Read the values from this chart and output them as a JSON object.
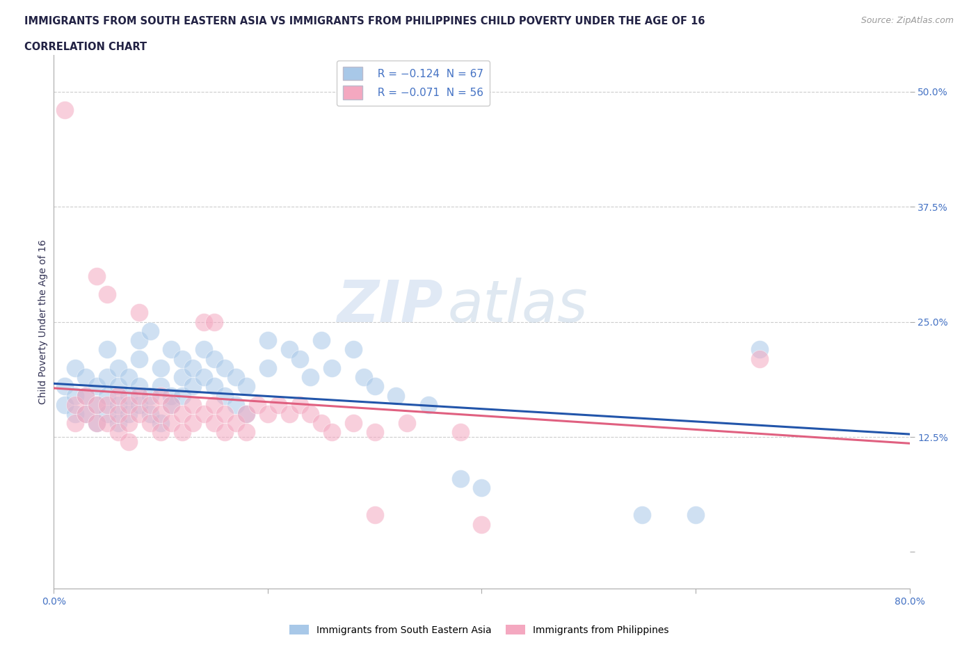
{
  "title_line1": "IMMIGRANTS FROM SOUTH EASTERN ASIA VS IMMIGRANTS FROM PHILIPPINES CHILD POVERTY UNDER THE AGE OF 16",
  "title_line2": "CORRELATION CHART",
  "source_text": "Source: ZipAtlas.com",
  "ylabel": "Child Poverty Under the Age of 16",
  "xlim": [
    0.0,
    0.8
  ],
  "ylim": [
    -0.04,
    0.54
  ],
  "watermark_zip": "ZIP",
  "watermark_atlas": "atlas",
  "background_color": "#ffffff",
  "grid_color": "#cccccc",
  "blue_color": "#a8c8e8",
  "pink_color": "#f4a8c0",
  "blue_line_color": "#2255aa",
  "pink_line_color": "#e06080",
  "title_color": "#222244",
  "axis_label_color": "#4472c4",
  "legend_label_blue": "Immigrants from South Eastern Asia",
  "legend_label_pink": "Immigrants from Philippines",
  "blue_scatter": [
    [
      0.01,
      0.18
    ],
    [
      0.01,
      0.16
    ],
    [
      0.02,
      0.2
    ],
    [
      0.02,
      0.17
    ],
    [
      0.02,
      0.15
    ],
    [
      0.03,
      0.19
    ],
    [
      0.03,
      0.17
    ],
    [
      0.03,
      0.15
    ],
    [
      0.04,
      0.18
    ],
    [
      0.04,
      0.16
    ],
    [
      0.04,
      0.14
    ],
    [
      0.05,
      0.22
    ],
    [
      0.05,
      0.19
    ],
    [
      0.05,
      0.17
    ],
    [
      0.05,
      0.15
    ],
    [
      0.06,
      0.2
    ],
    [
      0.06,
      0.18
    ],
    [
      0.06,
      0.16
    ],
    [
      0.06,
      0.14
    ],
    [
      0.07,
      0.19
    ],
    [
      0.07,
      0.17
    ],
    [
      0.07,
      0.15
    ],
    [
      0.08,
      0.23
    ],
    [
      0.08,
      0.21
    ],
    [
      0.08,
      0.18
    ],
    [
      0.08,
      0.16
    ],
    [
      0.09,
      0.24
    ],
    [
      0.09,
      0.17
    ],
    [
      0.09,
      0.15
    ],
    [
      0.1,
      0.2
    ],
    [
      0.1,
      0.18
    ],
    [
      0.1,
      0.14
    ],
    [
      0.11,
      0.22
    ],
    [
      0.11,
      0.17
    ],
    [
      0.11,
      0.16
    ],
    [
      0.12,
      0.21
    ],
    [
      0.12,
      0.19
    ],
    [
      0.12,
      0.17
    ],
    [
      0.13,
      0.2
    ],
    [
      0.13,
      0.18
    ],
    [
      0.14,
      0.22
    ],
    [
      0.14,
      0.19
    ],
    [
      0.15,
      0.21
    ],
    [
      0.15,
      0.18
    ],
    [
      0.16,
      0.2
    ],
    [
      0.16,
      0.17
    ],
    [
      0.17,
      0.19
    ],
    [
      0.17,
      0.16
    ],
    [
      0.18,
      0.18
    ],
    [
      0.18,
      0.15
    ],
    [
      0.2,
      0.23
    ],
    [
      0.2,
      0.2
    ],
    [
      0.22,
      0.22
    ],
    [
      0.23,
      0.21
    ],
    [
      0.24,
      0.19
    ],
    [
      0.25,
      0.23
    ],
    [
      0.26,
      0.2
    ],
    [
      0.28,
      0.22
    ],
    [
      0.29,
      0.19
    ],
    [
      0.3,
      0.18
    ],
    [
      0.32,
      0.17
    ],
    [
      0.35,
      0.16
    ],
    [
      0.38,
      0.08
    ],
    [
      0.4,
      0.07
    ],
    [
      0.55,
      0.04
    ],
    [
      0.6,
      0.04
    ],
    [
      0.66,
      0.22
    ]
  ],
  "pink_scatter": [
    [
      0.01,
      0.48
    ],
    [
      0.02,
      0.16
    ],
    [
      0.02,
      0.14
    ],
    [
      0.03,
      0.17
    ],
    [
      0.03,
      0.15
    ],
    [
      0.04,
      0.3
    ],
    [
      0.04,
      0.16
    ],
    [
      0.04,
      0.14
    ],
    [
      0.05,
      0.28
    ],
    [
      0.05,
      0.16
    ],
    [
      0.05,
      0.14
    ],
    [
      0.06,
      0.17
    ],
    [
      0.06,
      0.15
    ],
    [
      0.06,
      0.13
    ],
    [
      0.07,
      0.16
    ],
    [
      0.07,
      0.14
    ],
    [
      0.07,
      0.12
    ],
    [
      0.08,
      0.26
    ],
    [
      0.08,
      0.17
    ],
    [
      0.08,
      0.15
    ],
    [
      0.09,
      0.16
    ],
    [
      0.09,
      0.14
    ],
    [
      0.1,
      0.17
    ],
    [
      0.1,
      0.15
    ],
    [
      0.1,
      0.13
    ],
    [
      0.11,
      0.16
    ],
    [
      0.11,
      0.14
    ],
    [
      0.12,
      0.15
    ],
    [
      0.12,
      0.13
    ],
    [
      0.13,
      0.16
    ],
    [
      0.13,
      0.14
    ],
    [
      0.14,
      0.25
    ],
    [
      0.14,
      0.15
    ],
    [
      0.15,
      0.25
    ],
    [
      0.15,
      0.16
    ],
    [
      0.15,
      0.14
    ],
    [
      0.16,
      0.15
    ],
    [
      0.16,
      0.13
    ],
    [
      0.17,
      0.14
    ],
    [
      0.18,
      0.15
    ],
    [
      0.18,
      0.13
    ],
    [
      0.19,
      0.16
    ],
    [
      0.2,
      0.15
    ],
    [
      0.21,
      0.16
    ],
    [
      0.22,
      0.15
    ],
    [
      0.23,
      0.16
    ],
    [
      0.24,
      0.15
    ],
    [
      0.25,
      0.14
    ],
    [
      0.26,
      0.13
    ],
    [
      0.28,
      0.14
    ],
    [
      0.3,
      0.13
    ],
    [
      0.33,
      0.14
    ],
    [
      0.38,
      0.13
    ],
    [
      0.4,
      0.03
    ],
    [
      0.66,
      0.21
    ],
    [
      0.3,
      0.04
    ]
  ],
  "blue_trend": [
    0.0,
    0.8,
    0.183,
    0.128
  ],
  "pink_trend": [
    0.0,
    0.8,
    0.178,
    0.118
  ]
}
